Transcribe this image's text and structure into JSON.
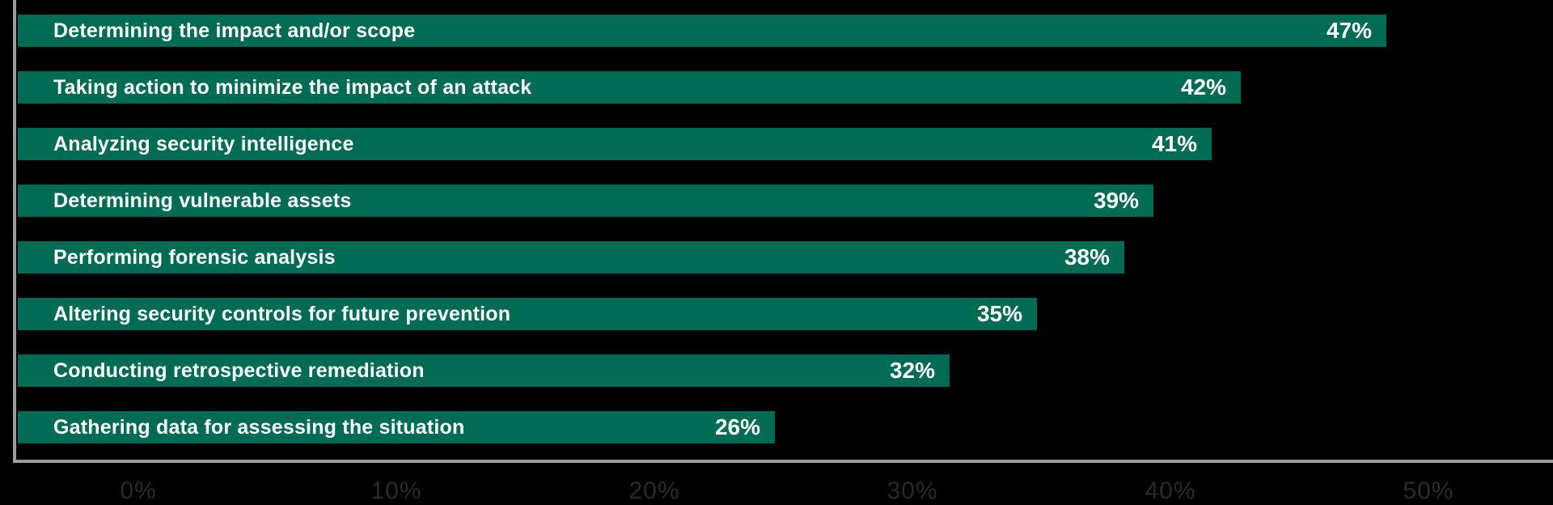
{
  "chart_data": {
    "type": "bar",
    "orientation": "horizontal",
    "title": "",
    "xlabel": "",
    "ylabel": "",
    "categories": [
      "Determining the impact and/or scope",
      "Taking action to minimize the impact of an attack",
      "Analyzing security intelligence",
      "Determining vulnerable assets",
      "Performing forensic analysis",
      "Altering security controls for future prevention",
      "Conducting retrospective remediation",
      "Gathering data for assessing the situation"
    ],
    "values": [
      47,
      42,
      41,
      39,
      38,
      35,
      32,
      26
    ],
    "value_labels": [
      "47%",
      "42%",
      "41%",
      "39%",
      "38%",
      "35%",
      "32%",
      "26%"
    ],
    "x_ticks": [
      "0%",
      "10%",
      "20%",
      "30%",
      "40%",
      "50%"
    ],
    "xlim": [
      0,
      50
    ],
    "grid": "off",
    "legend": "none",
    "colors": {
      "bar": "#006B54",
      "bar_text": "#FFFFFF",
      "axis_line": "#9B9B9B",
      "tick_label": "#2B2B2B",
      "background": "#000000"
    }
  }
}
